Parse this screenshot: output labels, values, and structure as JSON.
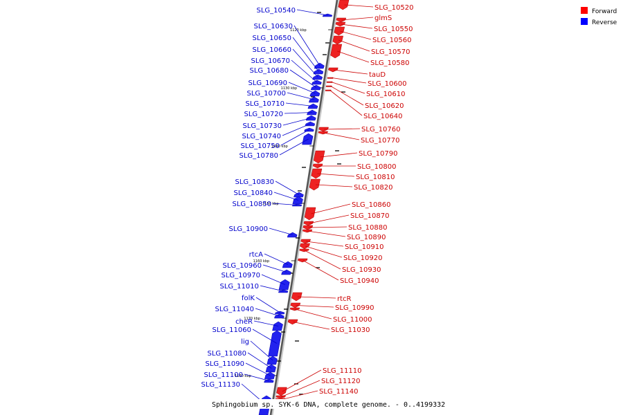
{
  "legend": {
    "forward": {
      "label": "Forward",
      "color": "#ff0000"
    },
    "reverse": {
      "label": "Reverse",
      "color": "#0000ff"
    }
  },
  "footer": "Sphingobium sp. SYK-6 DNA, complete genome. - 0..4199332",
  "kbp_ticks": [
    "1120 kbp",
    "1130 kbp",
    "1140 kbp",
    "1150 kbp",
    "1160 kbp",
    "1170 kbp",
    "1180 kbp"
  ],
  "reverse_genes": [
    "SLG_10540",
    "SLG_10630",
    "SLG_10650",
    "SLG_10660",
    "SLG_10670",
    "SLG_10680",
    "SLG_10690",
    "SLG_10700",
    "SLG_10710",
    "SLG_10720",
    "SLG_10730",
    "SLG_10740",
    "SLG_10750",
    "SLG_10780",
    "SLG_10830",
    "SLG_10840",
    "SLG_10850",
    "SLG_10900",
    "rtcA",
    "SLG_10960",
    "SLG_10970",
    "SLG_11010",
    "folK",
    "SLG_11040",
    "cheR",
    "SLG_11060",
    "lig",
    "SLG_11080",
    "SLG_11090",
    "SLG_11100",
    "SLG_11130"
  ],
  "forward_genes": [
    "SLG_10520",
    "glmS",
    "SLG_10550",
    "SLG_10560",
    "SLG_10570",
    "SLG_10580",
    "tauD",
    "SLG_10600",
    "SLG_10610",
    "SLG_10620",
    "SLG_10640",
    "SLG_10760",
    "SLG_10770",
    "SLG_10790",
    "SLG_10800",
    "SLG_10810",
    "SLG_10820",
    "SLG_10860",
    "SLG_10870",
    "SLG_10880",
    "SLG_10890",
    "SLG_10910",
    "SLG_10920",
    "SLG_10930",
    "SLG_10940",
    "rtcR",
    "SLG_10990",
    "SLG_11000",
    "SLG_11030",
    "SLG_11110",
    "SLG_11120",
    "SLG_11140"
  ]
}
